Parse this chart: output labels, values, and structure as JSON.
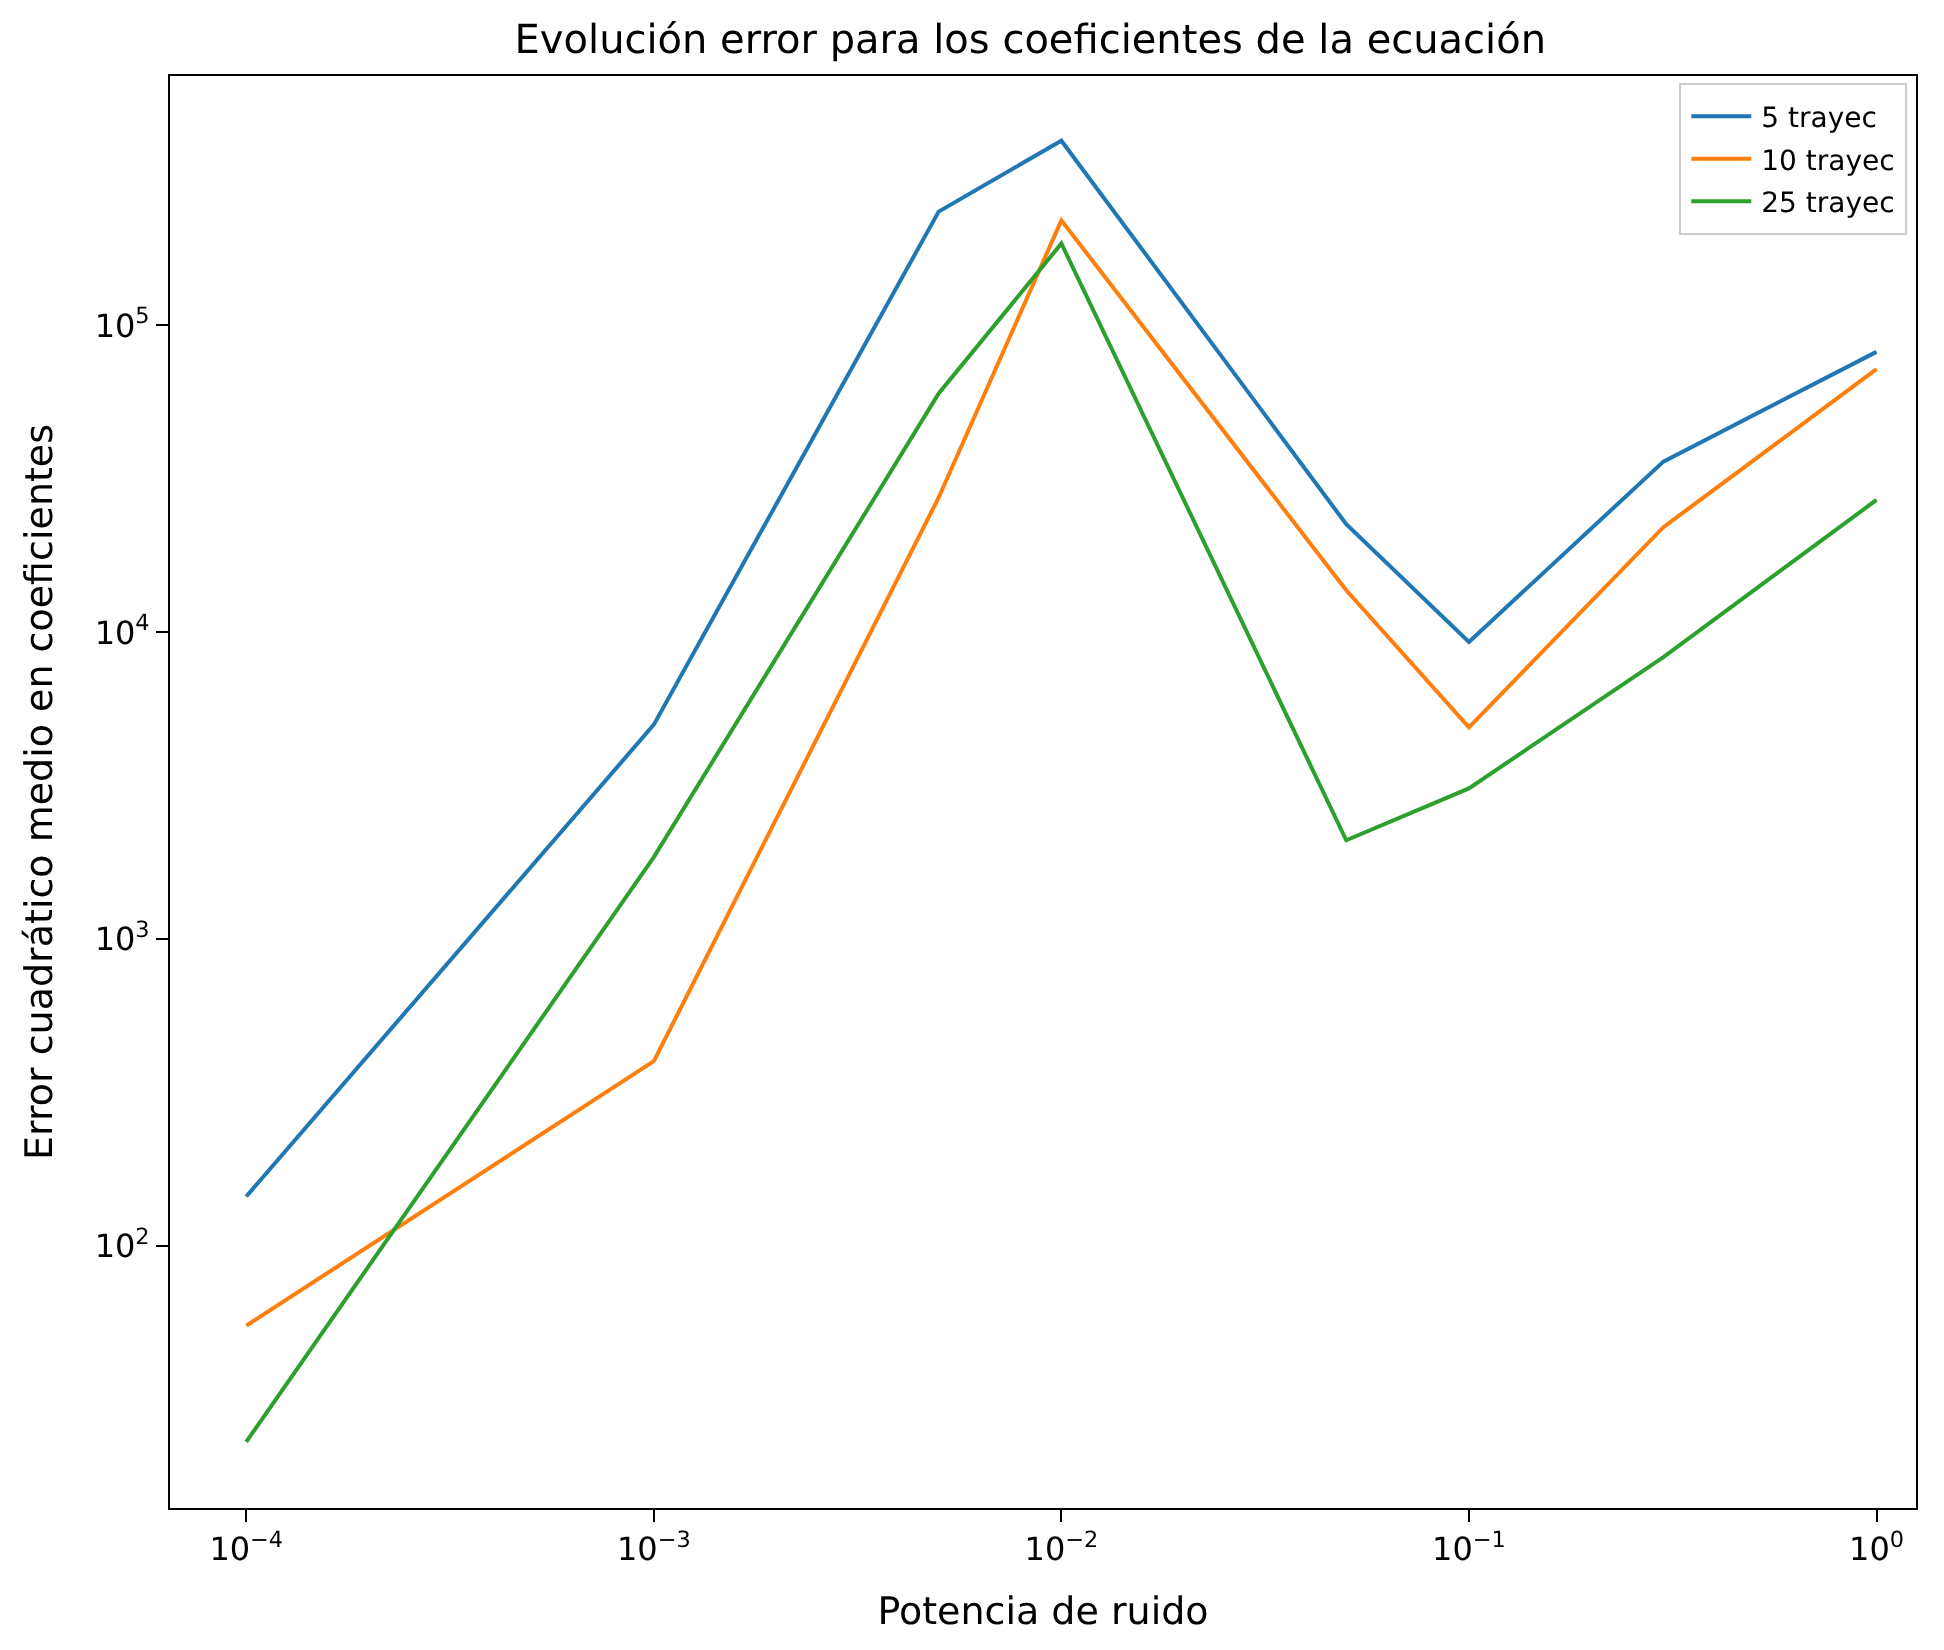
{
  "chart_data": {
    "type": "line",
    "title": "Evolución error para los coeficientes de la ecuación",
    "xlabel": "Potencia de ruido",
    "ylabel": "Error cuadrático medio en coeficientes",
    "x": [
      0.0001,
      0.001,
      0.005,
      0.01,
      0.05,
      0.1,
      0.3,
      1
    ],
    "series": [
      {
        "name": "5 trayec",
        "color": "#1f77b4",
        "values": [
          145,
          5000,
          235000,
          400000,
          22500,
          9300,
          36000,
          82000
        ]
      },
      {
        "name": "10 trayec",
        "color": "#ff7f0e",
        "values": [
          55,
          400,
          27500,
          220000,
          13700,
          4900,
          22000,
          72000
        ]
      },
      {
        "name": "25 trayec",
        "color": "#2ca02c",
        "values": [
          23,
          1850,
          60000,
          185000,
          2100,
          3100,
          8300,
          27000
        ]
      }
    ],
    "log": "xy",
    "xlim": [
      6.5e-05,
      1.25
    ],
    "ylim": [
      14,
      650000
    ],
    "xticks": [
      {
        "value": 0.0001,
        "label": "10$^{−4}$"
      },
      {
        "value": 0.001,
        "label": "10$^{−3}$"
      },
      {
        "value": 0.01,
        "label": "10$^{−2}$"
      },
      {
        "value": 0.1,
        "label": "10$^{−1}$"
      },
      {
        "value": 1,
        "label": "10$^{0}$"
      }
    ],
    "yticks": [
      {
        "value": 100,
        "label": "10$^{2}$"
      },
      {
        "value": 1000,
        "label": "10$^{3}$"
      },
      {
        "value": 10000,
        "label": "10$^{4}$"
      },
      {
        "value": 100000,
        "label": "10$^{5}$"
      }
    ],
    "legend": "top right",
    "line_style": "solid",
    "marker": "none"
  }
}
